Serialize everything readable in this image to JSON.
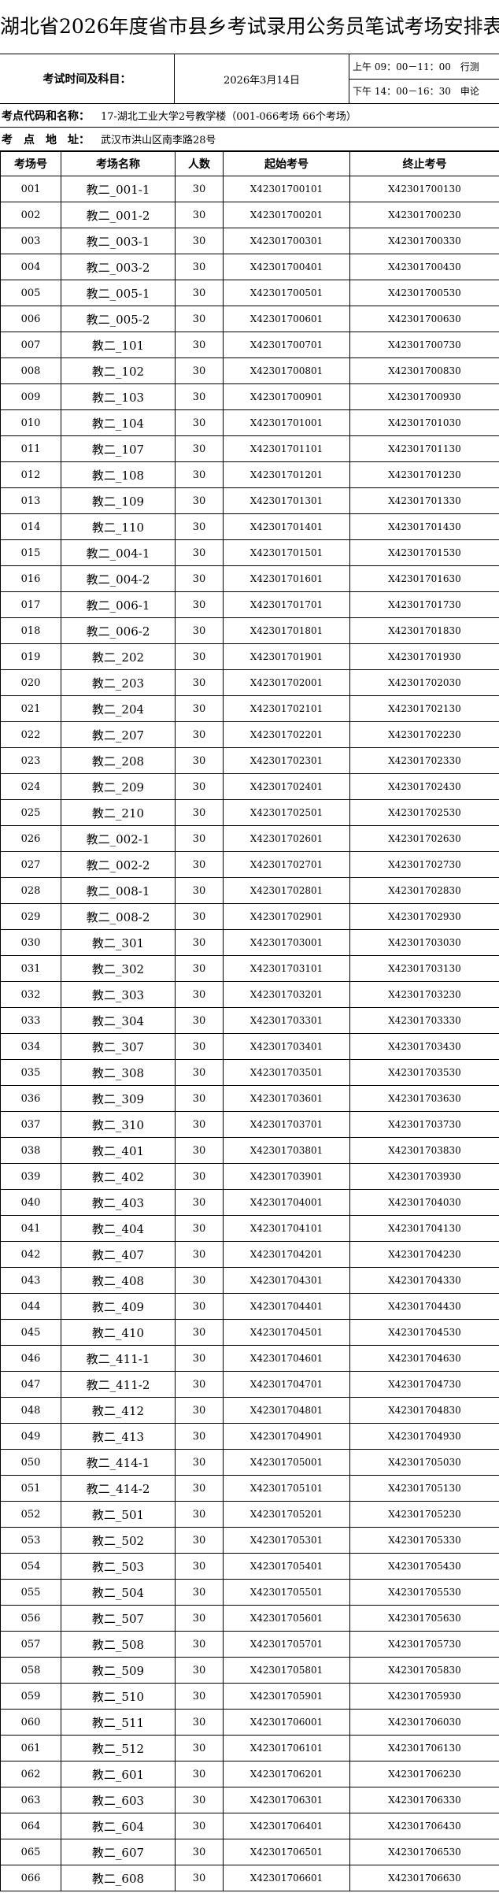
{
  "title": "湖北省2026年度省市县乡考试录用公务员笔试考场安排表",
  "exam_time_label": "考试时间及科目：",
  "exam_date": "2026年3月14日",
  "sessions": [
    "上午 09：00－11：00　行测",
    "下午 14：00－16：30　申论"
  ],
  "site_label": "考点代码和名称：",
  "site_value": "17-湖北工业大学2号教学楼（001-066考场 66个考场）",
  "address_label": "考　点　地　址：",
  "address_value": "武汉市洪山区南李路28号",
  "table": {
    "headers": [
      "考场号",
      "考场名称",
      "人数",
      "起始考号",
      "终止考号"
    ],
    "rows": [
      [
        "001",
        "教二_001-1",
        "30",
        "X42301700101",
        "X42301700130"
      ],
      [
        "002",
        "教二_001-2",
        "30",
        "X42301700201",
        "X42301700230"
      ],
      [
        "003",
        "教二_003-1",
        "30",
        "X42301700301",
        "X42301700330"
      ],
      [
        "004",
        "教二_003-2",
        "30",
        "X42301700401",
        "X42301700430"
      ],
      [
        "005",
        "教二_005-1",
        "30",
        "X42301700501",
        "X42301700530"
      ],
      [
        "006",
        "教二_005-2",
        "30",
        "X42301700601",
        "X42301700630"
      ],
      [
        "007",
        "教二_101",
        "30",
        "X42301700701",
        "X42301700730"
      ],
      [
        "008",
        "教二_102",
        "30",
        "X42301700801",
        "X42301700830"
      ],
      [
        "009",
        "教二_103",
        "30",
        "X42301700901",
        "X42301700930"
      ],
      [
        "010",
        "教二_104",
        "30",
        "X42301701001",
        "X42301701030"
      ],
      [
        "011",
        "教二_107",
        "30",
        "X42301701101",
        "X42301701130"
      ],
      [
        "012",
        "教二_108",
        "30",
        "X42301701201",
        "X42301701230"
      ],
      [
        "013",
        "教二_109",
        "30",
        "X42301701301",
        "X42301701330"
      ],
      [
        "014",
        "教二_110",
        "30",
        "X42301701401",
        "X42301701430"
      ],
      [
        "015",
        "教二_004-1",
        "30",
        "X42301701501",
        "X42301701530"
      ],
      [
        "016",
        "教二_004-2",
        "30",
        "X42301701601",
        "X42301701630"
      ],
      [
        "017",
        "教二_006-1",
        "30",
        "X42301701701",
        "X42301701730"
      ],
      [
        "018",
        "教二_006-2",
        "30",
        "X42301701801",
        "X42301701830"
      ],
      [
        "019",
        "教二_202",
        "30",
        "X42301701901",
        "X42301701930"
      ],
      [
        "020",
        "教二_203",
        "30",
        "X42301702001",
        "X42301702030"
      ],
      [
        "021",
        "教二_204",
        "30",
        "X42301702101",
        "X42301702130"
      ],
      [
        "022",
        "教二_207",
        "30",
        "X42301702201",
        "X42301702230"
      ],
      [
        "023",
        "教二_208",
        "30",
        "X42301702301",
        "X42301702330"
      ],
      [
        "024",
        "教二_209",
        "30",
        "X42301702401",
        "X42301702430"
      ],
      [
        "025",
        "教二_210",
        "30",
        "X42301702501",
        "X42301702530"
      ],
      [
        "026",
        "教二_002-1",
        "30",
        "X42301702601",
        "X42301702630"
      ],
      [
        "027",
        "教二_002-2",
        "30",
        "X42301702701",
        "X42301702730"
      ],
      [
        "028",
        "教二_008-1",
        "30",
        "X42301702801",
        "X42301702830"
      ],
      [
        "029",
        "教二_008-2",
        "30",
        "X42301702901",
        "X42301702930"
      ],
      [
        "030",
        "教二_301",
        "30",
        "X42301703001",
        "X42301703030"
      ],
      [
        "031",
        "教二_302",
        "30",
        "X42301703101",
        "X42301703130"
      ],
      [
        "032",
        "教二_303",
        "30",
        "X42301703201",
        "X42301703230"
      ],
      [
        "033",
        "教二_304",
        "30",
        "X42301703301",
        "X42301703330"
      ],
      [
        "034",
        "教二_307",
        "30",
        "X42301703401",
        "X42301703430"
      ],
      [
        "035",
        "教二_308",
        "30",
        "X42301703501",
        "X42301703530"
      ],
      [
        "036",
        "教二_309",
        "30",
        "X42301703601",
        "X42301703630"
      ],
      [
        "037",
        "教二_310",
        "30",
        "X42301703701",
        "X42301703730"
      ],
      [
        "038",
        "教二_401",
        "30",
        "X42301703801",
        "X42301703830"
      ],
      [
        "039",
        "教二_402",
        "30",
        "X42301703901",
        "X42301703930"
      ],
      [
        "040",
        "教二_403",
        "30",
        "X42301704001",
        "X42301704030"
      ],
      [
        "041",
        "教二_404",
        "30",
        "X42301704101",
        "X42301704130"
      ],
      [
        "042",
        "教二_407",
        "30",
        "X42301704201",
        "X42301704230"
      ],
      [
        "043",
        "教二_408",
        "30",
        "X42301704301",
        "X42301704330"
      ],
      [
        "044",
        "教二_409",
        "30",
        "X42301704401",
        "X42301704430"
      ],
      [
        "045",
        "教二_410",
        "30",
        "X42301704501",
        "X42301704530"
      ],
      [
        "046",
        "教二_411-1",
        "30",
        "X42301704601",
        "X42301704630"
      ],
      [
        "047",
        "教二_411-2",
        "30",
        "X42301704701",
        "X42301704730"
      ],
      [
        "048",
        "教二_412",
        "30",
        "X42301704801",
        "X42301704830"
      ],
      [
        "049",
        "教二_413",
        "30",
        "X42301704901",
        "X42301704930"
      ],
      [
        "050",
        "教二_414-1",
        "30",
        "X42301705001",
        "X42301705030"
      ],
      [
        "051",
        "教二_414-2",
        "30",
        "X42301705101",
        "X42301705130"
      ],
      [
        "052",
        "教二_501",
        "30",
        "X42301705201",
        "X42301705230"
      ],
      [
        "053",
        "教二_502",
        "30",
        "X42301705301",
        "X42301705330"
      ],
      [
        "054",
        "教二_503",
        "30",
        "X42301705401",
        "X42301705430"
      ],
      [
        "055",
        "教二_504",
        "30",
        "X42301705501",
        "X42301705530"
      ],
      [
        "056",
        "教二_507",
        "30",
        "X42301705601",
        "X42301705630"
      ],
      [
        "057",
        "教二_508",
        "30",
        "X42301705701",
        "X42301705730"
      ],
      [
        "058",
        "教二_509",
        "30",
        "X42301705801",
        "X42301705830"
      ],
      [
        "059",
        "教二_510",
        "30",
        "X42301705901",
        "X42301705930"
      ],
      [
        "060",
        "教二_511",
        "30",
        "X42301706001",
        "X42301706030"
      ],
      [
        "061",
        "教二_512",
        "30",
        "X42301706101",
        "X42301706130"
      ],
      [
        "062",
        "教二_601",
        "30",
        "X42301706201",
        "X42301706230"
      ],
      [
        "063",
        "教二_603",
        "30",
        "X42301706301",
        "X42301706330"
      ],
      [
        "064",
        "教二_604",
        "30",
        "X42301706401",
        "X42301706430"
      ],
      [
        "065",
        "教二_607",
        "30",
        "X42301706501",
        "X42301706530"
      ],
      [
        "066",
        "教二_608",
        "30",
        "X42301706601",
        "X42301706630"
      ]
    ]
  }
}
